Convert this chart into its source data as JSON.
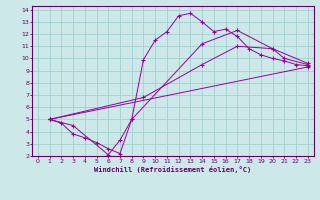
{
  "xlabel": "Windchill (Refroidissement éolien,°C)",
  "bg_color": "#cce8e8",
  "line_color": "#990099",
  "grid_color": "#99cccc",
  "axis_color": "#660066",
  "xlim": [
    -0.5,
    23.5
  ],
  "ylim": [
    2,
    14.3
  ],
  "xticks": [
    0,
    1,
    2,
    3,
    4,
    5,
    6,
    7,
    8,
    9,
    10,
    11,
    12,
    13,
    14,
    15,
    16,
    17,
    18,
    19,
    20,
    21,
    22,
    23
  ],
  "yticks": [
    2,
    3,
    4,
    5,
    6,
    7,
    8,
    9,
    10,
    11,
    12,
    13,
    14
  ],
  "series": [
    {
      "x": [
        1,
        2,
        3,
        4,
        5,
        6,
        7,
        8,
        9,
        10,
        11,
        12,
        13,
        14,
        15,
        16,
        17,
        18,
        19,
        20,
        21,
        22,
        23
      ],
      "y": [
        5.0,
        4.7,
        3.8,
        3.5,
        3.1,
        2.6,
        2.2,
        5.0,
        9.9,
        11.5,
        12.2,
        13.5,
        13.7,
        13.0,
        12.2,
        12.4,
        11.8,
        10.8,
        10.3,
        10.0,
        9.8,
        9.5,
        9.4
      ]
    },
    {
      "x": [
        1,
        3,
        6,
        7,
        8,
        14,
        17,
        20,
        23
      ],
      "y": [
        5.0,
        4.5,
        2.1,
        3.3,
        5.0,
        11.2,
        12.3,
        10.8,
        9.6
      ]
    },
    {
      "x": [
        1,
        23
      ],
      "y": [
        5.0,
        9.3
      ]
    },
    {
      "x": [
        1,
        9,
        14,
        17,
        20,
        21,
        23
      ],
      "y": [
        5.0,
        6.8,
        9.5,
        11.0,
        10.8,
        10.0,
        9.5
      ]
    }
  ]
}
